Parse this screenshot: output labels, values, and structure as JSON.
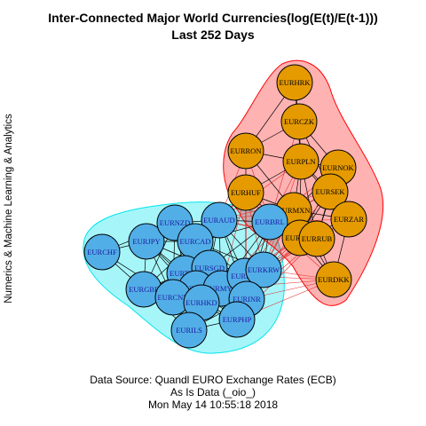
{
  "title": {
    "line1": "Inter-Connected Major World Currencies(log(E(t)/E(t-1)))",
    "line2": "Last 252 Days"
  },
  "side_label": "Numerics & Machine Learning & Analytics",
  "source": {
    "line1": "Data Source: Quandl EURO Exchange Rates (ECB)",
    "line2": "As Is Data (_oio_)",
    "line3": "Mon May 14 10:55:18 2018"
  },
  "colors": {
    "group_a_fill": "#52aee6",
    "group_a_hull": "#00e5ee",
    "group_b_fill": "#e59a00",
    "group_b_hull": "#ff0000",
    "edge": "#000000",
    "cross_edge": "#e03030",
    "label_text_a": "#1a1aa0",
    "label_text_b": "#000000"
  },
  "groups": [
    {
      "name": "A",
      "nodes": [
        "EURCHF",
        "EURJPY",
        "EURNZD",
        "EURAUD",
        "EURCAD",
        "EURGBP",
        "EURTHB",
        "EURSGD",
        "EURUSD",
        "EURCNY",
        "EURMYR",
        "EURHKD",
        "EURIDR",
        "EURKRW",
        "EURINR",
        "EURPHP",
        "EURILS",
        "EURBRL"
      ]
    },
    {
      "name": "B",
      "nodes": [
        "EURHRK",
        "EURCZK",
        "EURRON",
        "EURPLN",
        "EURNOK",
        "EURHUF",
        "EURSEK",
        "EURMXN",
        "EURZAR",
        "EURTRY",
        "EURRUB",
        "EURDKK"
      ]
    }
  ]
}
